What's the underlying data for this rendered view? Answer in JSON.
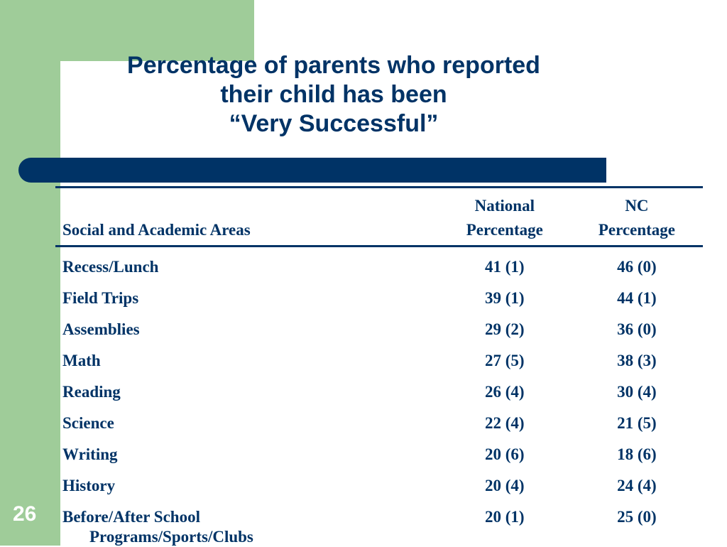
{
  "slide": {
    "title_lines": [
      "Percentage of parents who reported",
      "their child has been",
      "“Very Successful”"
    ],
    "slide_number": "26"
  },
  "table": {
    "headers": {
      "area": "Social and Academic Areas",
      "national_line1": "National",
      "national_line2": "Percentage",
      "nc_line1": "NC",
      "nc_line2": "Percentage"
    },
    "rows": [
      {
        "area": "Recess/Lunch",
        "national": "41 (1)",
        "nc": "46 (0)"
      },
      {
        "area": "Field Trips",
        "national": "39 (1)",
        "nc": "44 (1)"
      },
      {
        "area": "Assemblies",
        "national": "29 (2)",
        "nc": "36 (0)"
      },
      {
        "area": "Math",
        "national": "27 (5)",
        "nc": "38 (3)"
      },
      {
        "area": "Reading",
        "national": "26 (4)",
        "nc": "30 (4)"
      },
      {
        "area": "Science",
        "national": "22 (4)",
        "nc": "21 (5)"
      },
      {
        "area": "Writing",
        "national": "20 (6)",
        "nc": "18 (6)"
      },
      {
        "area": "History",
        "national": "20 (4)",
        "nc": "24 (4)"
      },
      {
        "area": "Before/After School",
        "area_line2": "Programs/Sports/Clubs",
        "national": "20 (1)",
        "nc": "25 (0)"
      }
    ]
  },
  "colors": {
    "accent_green": "#9fcc99",
    "navy": "#003366",
    "background": "#ffffff"
  }
}
